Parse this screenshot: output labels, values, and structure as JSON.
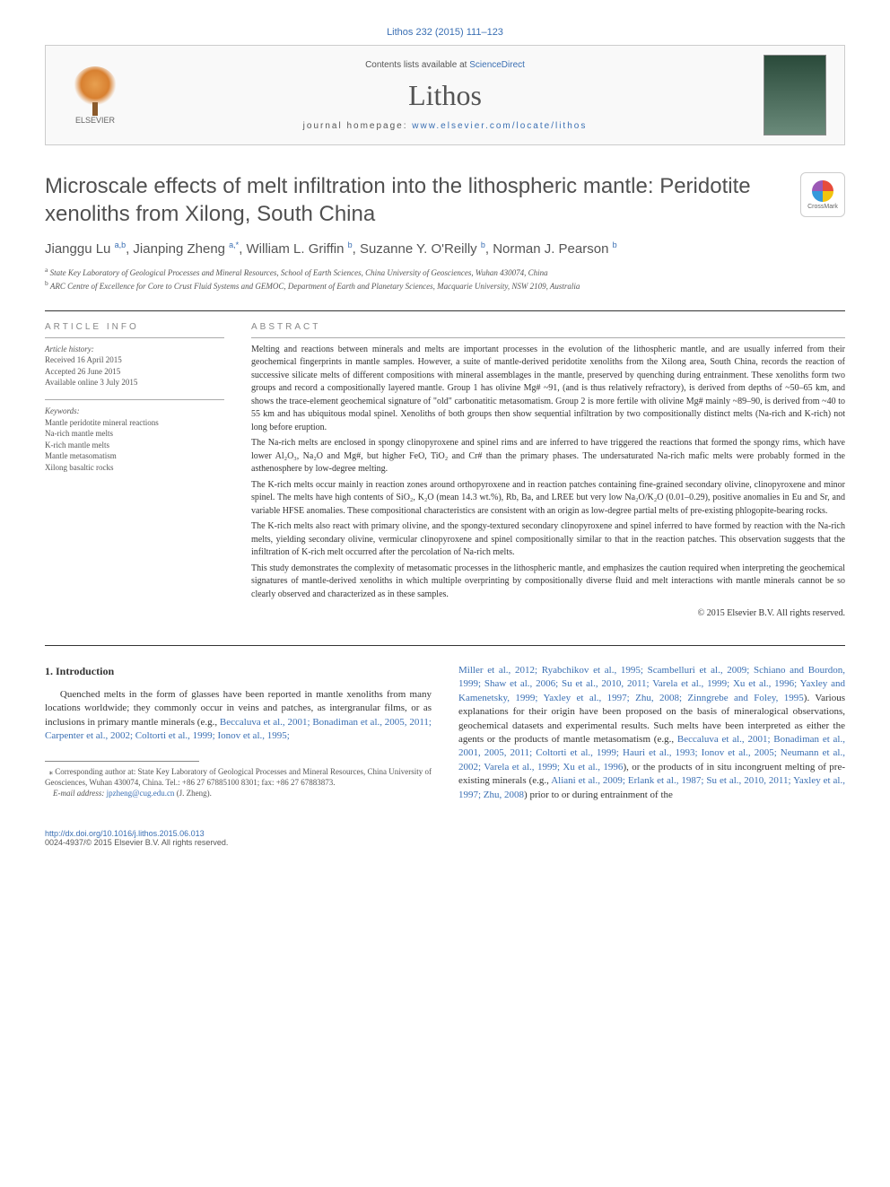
{
  "citation": "Lithos 232 (2015) 111–123",
  "header": {
    "contents_prefix": "Contents lists available at ",
    "contents_link": "ScienceDirect",
    "journal": "Lithos",
    "homepage_prefix": "journal homepage: ",
    "homepage_link": "www.elsevier.com/locate/lithos",
    "publisher": "ELSEVIER"
  },
  "crossmark_label": "CrossMark",
  "title": "Microscale effects of melt infiltration into the lithospheric mantle: Peridotite xenoliths from Xilong, South China",
  "authors_html": "Jianggu Lu <sup>a,b</sup>, Jianping Zheng <sup>a,*</sup>, William L. Griffin <sup>b</sup>, Suzanne Y. O'Reilly <sup>b</sup>, Norman J. Pearson <sup>b</sup>",
  "affiliations": [
    {
      "sup": "a",
      "text": "State Key Laboratory of Geological Processes and Mineral Resources, School of Earth Sciences, China University of Geosciences, Wuhan 430074, China"
    },
    {
      "sup": "b",
      "text": "ARC Centre of Excellence for Core to Crust Fluid Systems and GEMOC, Department of Earth and Planetary Sciences, Macquarie University, NSW 2109, Australia"
    }
  ],
  "article_info": {
    "label": "article info",
    "history_heading": "Article history:",
    "history": {
      "received": "Received 16 April 2015",
      "accepted": "Accepted 26 June 2015",
      "online": "Available online 3 July 2015"
    },
    "keywords_heading": "Keywords:",
    "keywords": [
      "Mantle peridotite mineral reactions",
      "Na-rich mantle melts",
      "K-rich mantle melts",
      "Mantle metasomatism",
      "Xilong basaltic rocks"
    ]
  },
  "abstract": {
    "label": "abstract",
    "paragraphs": [
      "Melting and reactions between minerals and melts are important processes in the evolution of the lithospheric mantle, and are usually inferred from their geochemical fingerprints in mantle samples. However, a suite of mantle-derived peridotite xenoliths from the Xilong area, South China, records the reaction of successive silicate melts of different compositions with mineral assemblages in the mantle, preserved by quenching during entrainment. These xenoliths form two groups and record a compositionally layered mantle. Group 1 has olivine Mg# ~91, (and is thus relatively refractory), is derived from depths of ~50–65 km, and shows the trace-element geochemical signature of \"old\" carbonatitic metasomatism. Group 2 is more fertile with olivine Mg# mainly ~89–90, is derived from ~40 to 55 km and has ubiquitous modal spinel. Xenoliths of both groups then show sequential infiltration by two compositionally distinct melts (Na-rich and K-rich) not long before eruption.",
      "The Na-rich melts are enclosed in spongy clinopyroxene and spinel rims and are inferred to have triggered the reactions that formed the spongy rims, which have lower Al₂O₃, Na₂O and Mg#, but higher FeO, TiO₂ and Cr# than the primary phases. The undersaturated Na-rich mafic melts were probably formed in the asthenosphere by low-degree melting.",
      "The K-rich melts occur mainly in reaction zones around orthopyroxene and in reaction patches containing fine-grained secondary olivine, clinopyroxene and minor spinel. The melts have high contents of SiO₂, K₂O (mean 14.3 wt.%), Rb, Ba, and LREE but very low Na₂O/K₂O (0.01–0.29), positive anomalies in Eu and Sr, and variable HFSE anomalies. These compositional characteristics are consistent with an origin as low-degree partial melts of pre-existing phlogopite-bearing rocks.",
      "The K-rich melts also react with primary olivine, and the spongy-textured secondary clinopyroxene and spinel inferred to have formed by reaction with the Na-rich melts, yielding secondary olivine, vermicular clinopyroxene and spinel compositionally similar to that in the reaction patches. This observation suggests that the infiltration of K-rich melt occurred after the percolation of Na-rich melts.",
      "This study demonstrates the complexity of metasomatic processes in the lithospheric mantle, and emphasizes the caution required when interpreting the geochemical signatures of mantle-derived xenoliths in which multiple overprinting by compositionally diverse fluid and melt interactions with mantle minerals cannot be so clearly observed and characterized as in these samples."
    ],
    "copyright": "© 2015 Elsevier B.V. All rights reserved."
  },
  "intro": {
    "heading": "1. Introduction",
    "col1_text": "Quenched melts in the form of glasses have been reported in mantle xenoliths from many locations worldwide; they commonly occur in veins and patches, as intergranular films, or as inclusions in primary mantle minerals (e.g., ",
    "col1_refs": "Beccaluva et al., 2001; Bonadiman et al., 2005, 2011; Carpenter et al., 2002; Coltorti et al., 1999; Ionov et al., 1995;",
    "col2_refs": "Miller et al., 2012; Ryabchikov et al., 1995; Scambelluri et al., 2009; Schiano and Bourdon, 1999; Shaw et al., 2006; Su et al., 2010, 2011; Varela et al., 1999; Xu et al., 1996; Yaxley and Kamenetsky, 1999; Yaxley et al., 1997; Zhu, 2008; Zinngrebe and Foley, 1995",
    "col2_text1": "). Various explanations for their origin have been proposed on the basis of mineralogical observations, geochemical datasets and experimental results. Such melts have been interpreted as either the agents or the products of mantle metasomatism (e.g., ",
    "col2_refs2": "Beccaluva et al., 2001; Bonadiman et al., 2001, 2005, 2011; Coltorti et al., 1999; Hauri et al., 1993; Ionov et al., 2005; Neumann et al., 2002; Varela et al., 1999; Xu et al., 1996",
    "col2_text2": "), or the products of in situ incongruent melting of pre-existing minerals (e.g., ",
    "col2_refs3": "Aliani et al., 2009; Erlank et al., 1987; Su et al., 2010, 2011; Yaxley et al., 1997; Zhu, 2008",
    "col2_text3": ") prior to or during entrainment of the"
  },
  "corresponding": {
    "star": "⁎",
    "text": "Corresponding author at: State Key Laboratory of Geological Processes and Mineral Resources, China University of Geosciences, Wuhan 430074, China. Tel.: +86 27 67885100 8301; fax: +86 27 67883873.",
    "email_label": "E-mail address:",
    "email": "jpzheng@cug.edu.cn",
    "email_name": "(J. Zheng)."
  },
  "footer": {
    "doi": "http://dx.doi.org/10.1016/j.lithos.2015.06.013",
    "issn": "0024-4937/© 2015 Elsevier B.V. All rights reserved."
  },
  "colors": {
    "link": "#3a6fb3",
    "text": "#333333",
    "muted": "#555555",
    "border": "#cccccc"
  },
  "typography": {
    "title_fontsize": 24,
    "journal_fontsize": 32,
    "body_fontsize": 11,
    "abstract_fontsize": 10,
    "footnote_fontsize": 9
  }
}
